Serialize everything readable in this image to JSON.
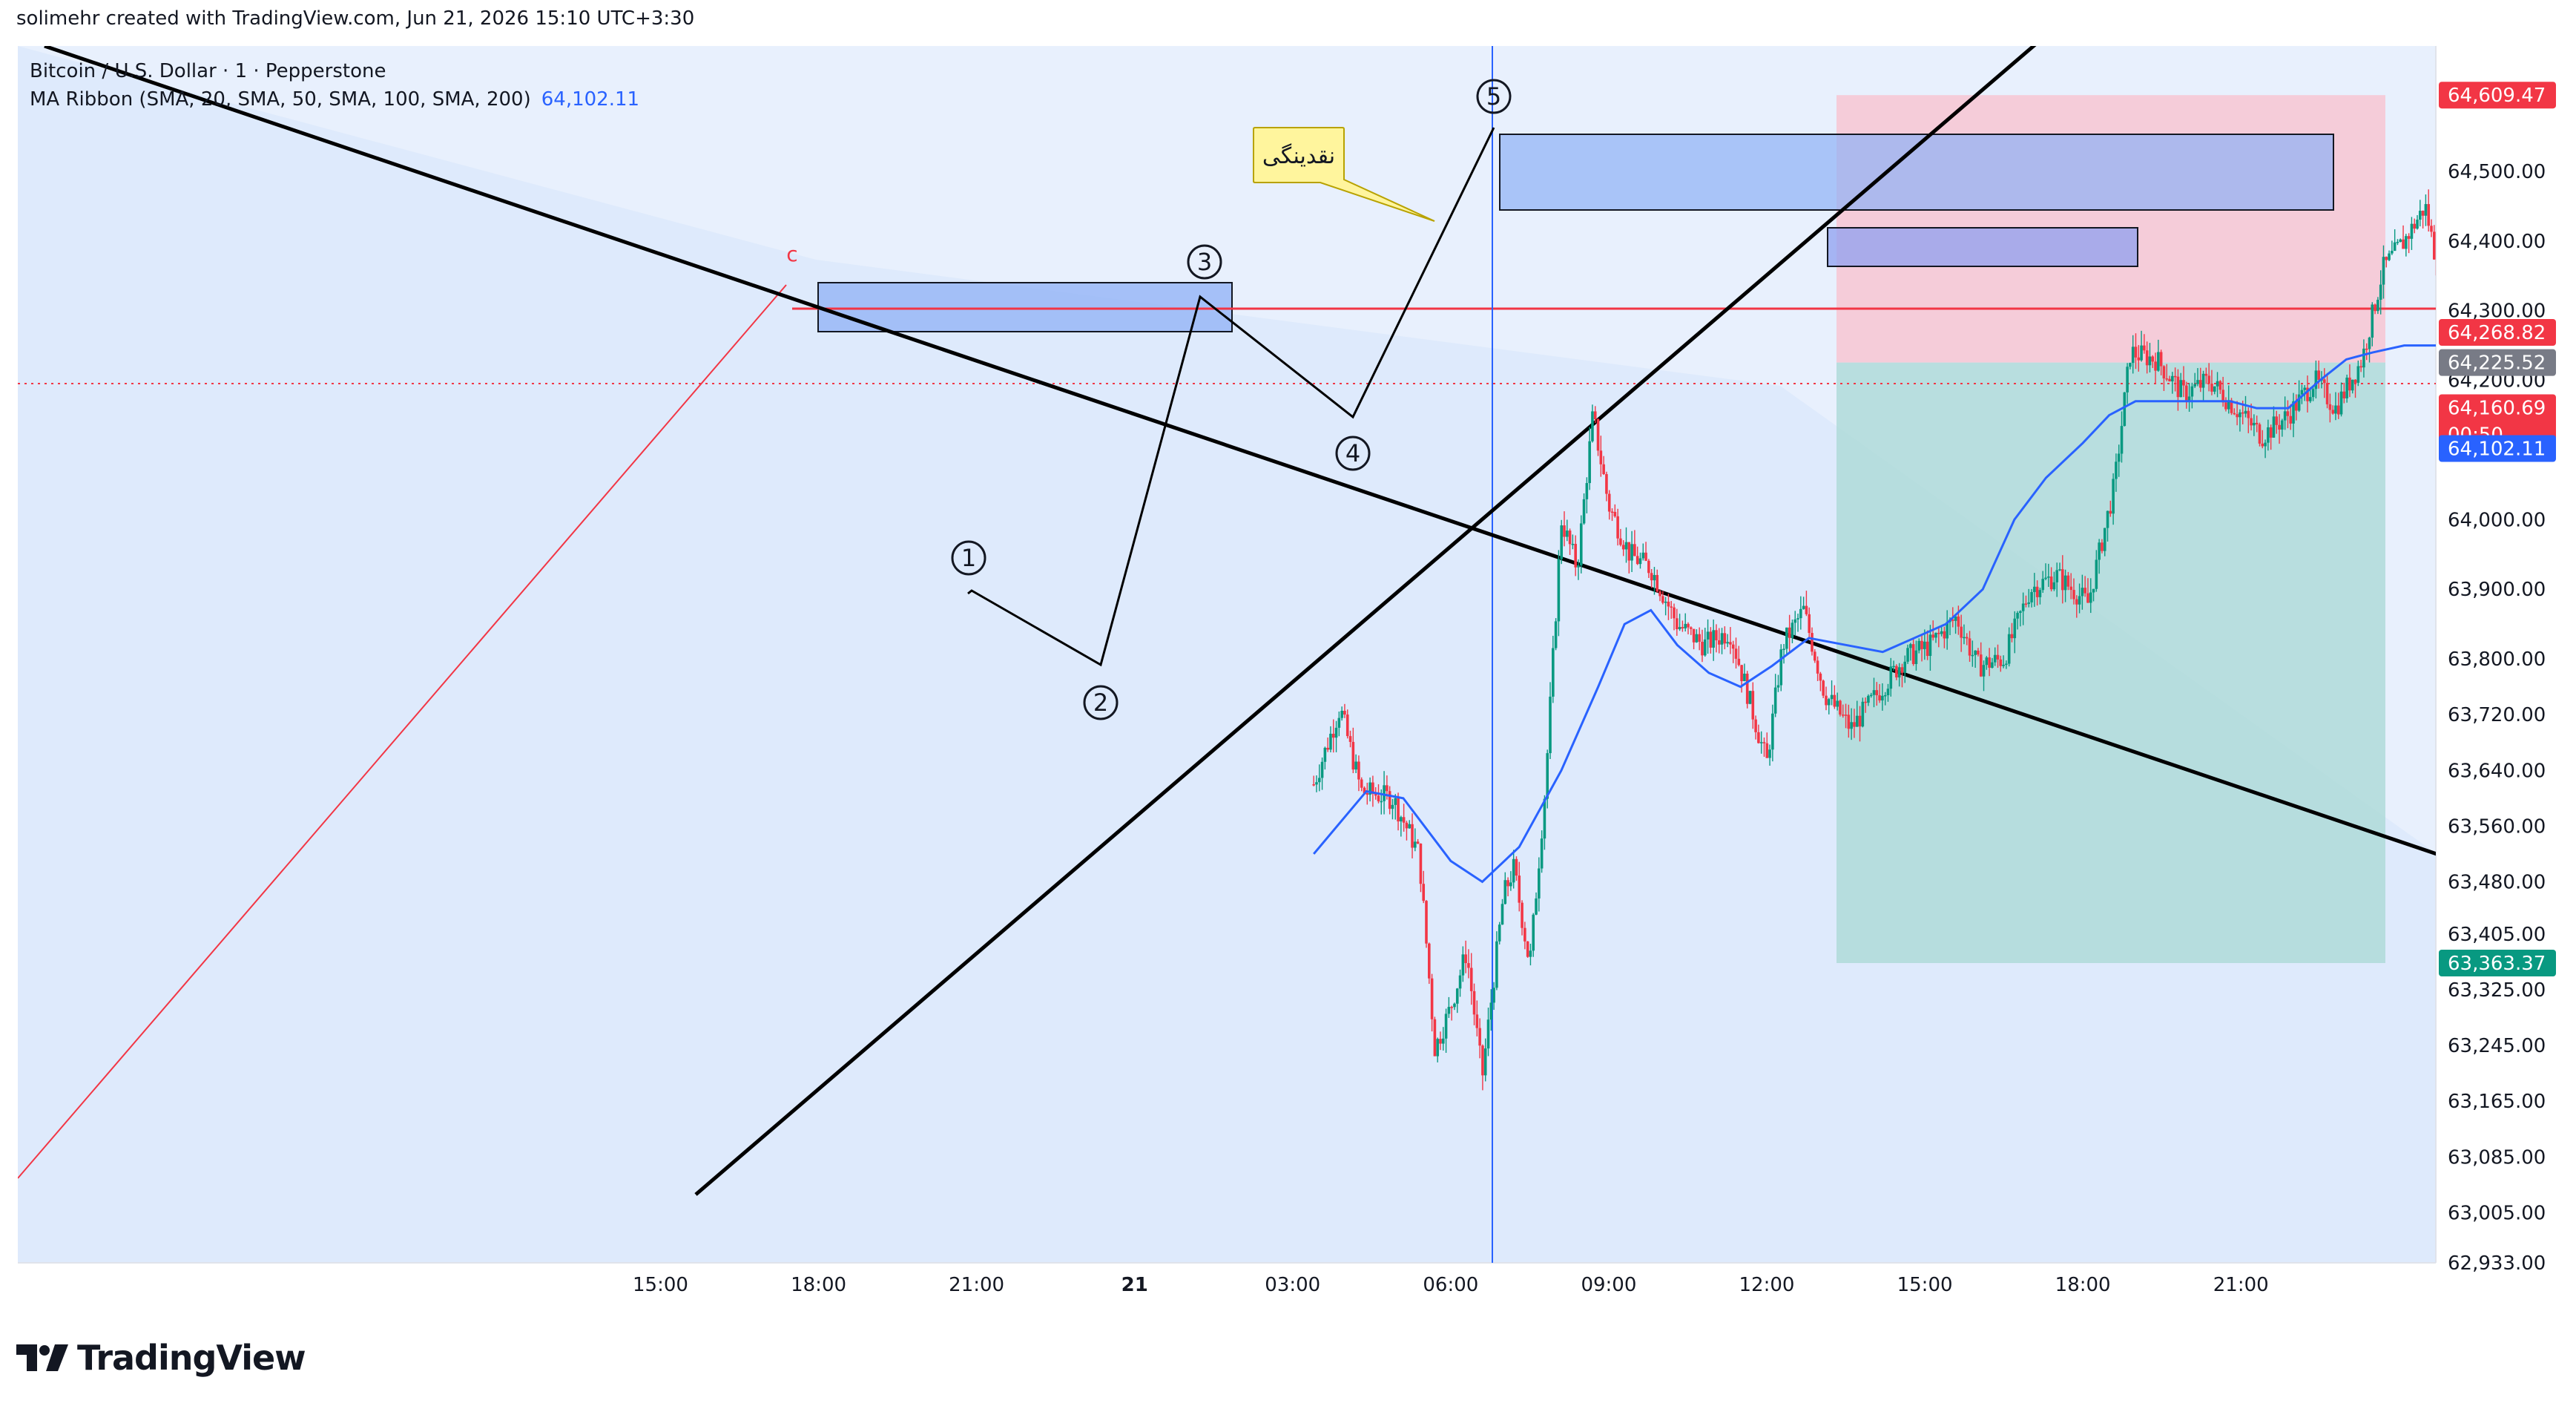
{
  "header": {
    "credit": "solimehr created with TradingView.com, Jun 21, 2026 15:10 UTC+3:30"
  },
  "legend": {
    "symbol": "Bitcoin / U.S. Dollar · 1 · Pepperstone",
    "indicator": "MA Ribbon (SMA, 20, SMA, 50, SMA, 100, SMA, 200)",
    "indicator_value": "64,102.11"
  },
  "footer": {
    "brand": "TradingView"
  },
  "colors": {
    "background": "#ffffff",
    "plot_bg": "#e8f0fd",
    "up_candle": "#089981",
    "down_candle": "#f23645",
    "sma": "#2962ff",
    "stop_zone": "#f7c6d2",
    "target_zone": "#a8d8d4",
    "order_block": "#8fb0f5",
    "resistance": "#f23645",
    "trendline": "#000000"
  },
  "chart_data": {
    "type": "candlestick",
    "symbol": "Bitcoin / U.S. Dollar",
    "interval": "1",
    "ylim": [
      62933,
      64680
    ],
    "y_ticks": [
      "64,500.00",
      "64,400.00",
      "64,300.00",
      "64,200.00",
      "64,000.00",
      "63,900.00",
      "63,800.00",
      "63,720.00",
      "63,640.00",
      "63,560.00",
      "63,480.00",
      "63,405.00",
      "63,325.00",
      "63,245.00",
      "63,165.00",
      "63,085.00",
      "63,005.00",
      "62,933.00"
    ],
    "x_ticks": [
      "15:00",
      "18:00",
      "21:00",
      "21",
      "03:00",
      "06:00",
      "09:00",
      "12:00",
      "15:00",
      "18:00",
      "21:00"
    ],
    "x_ticks_hours": [
      15,
      18,
      21,
      24,
      27,
      30,
      33,
      36,
      39,
      42,
      45
    ],
    "x_range_hours": [
      2.8,
      48.7
    ],
    "price_path": [
      [
        27.4,
        63620
      ],
      [
        27.9,
        63730
      ],
      [
        28.3,
        63610
      ],
      [
        28.9,
        63600
      ],
      [
        29.4,
        63520
      ],
      [
        29.7,
        63240
      ],
      [
        30.0,
        63300
      ],
      [
        30.3,
        63380
      ],
      [
        30.6,
        63200
      ],
      [
        31.0,
        63460
      ],
      [
        31.2,
        63500
      ],
      [
        31.5,
        63360
      ],
      [
        31.8,
        63620
      ],
      [
        32.1,
        64000
      ],
      [
        32.4,
        63930
      ],
      [
        32.7,
        64150
      ],
      [
        33.0,
        64020
      ],
      [
        33.4,
        63950
      ],
      [
        33.8,
        63930
      ],
      [
        34.3,
        63850
      ],
      [
        34.8,
        63820
      ],
      [
        35.3,
        63840
      ],
      [
        35.6,
        63760
      ],
      [
        36.0,
        63650
      ],
      [
        36.3,
        63820
      ],
      [
        36.7,
        63870
      ],
      [
        37.1,
        63750
      ],
      [
        37.6,
        63700
      ],
      [
        38.2,
        63760
      ],
      [
        38.6,
        63800
      ],
      [
        39.1,
        63820
      ],
      [
        39.6,
        63860
      ],
      [
        40.0,
        63790
      ],
      [
        40.5,
        63800
      ],
      [
        41.0,
        63900
      ],
      [
        41.5,
        63920
      ],
      [
        42.1,
        63880
      ],
      [
        42.6,
        64050
      ],
      [
        42.9,
        64240
      ],
      [
        43.4,
        64230
      ],
      [
        43.9,
        64180
      ],
      [
        44.4,
        64200
      ],
      [
        44.9,
        64160
      ],
      [
        45.4,
        64120
      ],
      [
        45.9,
        64150
      ],
      [
        46.4,
        64200
      ],
      [
        46.8,
        64160
      ],
      [
        47.3,
        64230
      ],
      [
        47.7,
        64360
      ],
      [
        48.1,
        64400
      ],
      [
        48.5,
        64450
      ],
      [
        48.9,
        64300
      ],
      [
        49.3,
        64240
      ],
      [
        49.8,
        64200
      ],
      [
        50.3,
        64220
      ],
      [
        50.8,
        64180
      ],
      [
        51.2,
        64250
      ],
      [
        51.7,
        64200
      ],
      [
        52.1,
        64130
      ],
      [
        52.6,
        64200
      ],
      [
        53.0,
        64150
      ],
      [
        53.4,
        64020
      ],
      [
        53.8,
        63900
      ],
      [
        54.2,
        63820
      ],
      [
        54.6,
        63850
      ],
      [
        55.0,
        63900
      ],
      [
        55.3,
        64000
      ],
      [
        55.7,
        64080
      ],
      [
        56.1,
        64130
      ],
      [
        56.5,
        64230
      ],
      [
        56.8,
        64320
      ],
      [
        57.2,
        64260
      ],
      [
        57.6,
        64110
      ],
      [
        57.9,
        64160
      ]
    ],
    "sma_path": [
      [
        27.4,
        63520
      ],
      [
        28.4,
        63610
      ],
      [
        29.1,
        63600
      ],
      [
        30.0,
        63510
      ],
      [
        30.6,
        63480
      ],
      [
        31.3,
        63530
      ],
      [
        32.1,
        63640
      ],
      [
        32.8,
        63760
      ],
      [
        33.3,
        63850
      ],
      [
        33.8,
        63870
      ],
      [
        34.3,
        63820
      ],
      [
        34.9,
        63780
      ],
      [
        35.5,
        63760
      ],
      [
        36.1,
        63790
      ],
      [
        36.8,
        63830
      ],
      [
        37.5,
        63820
      ],
      [
        38.2,
        63810
      ],
      [
        38.8,
        63830
      ],
      [
        39.4,
        63850
      ],
      [
        40.1,
        63900
      ],
      [
        40.7,
        64000
      ],
      [
        41.3,
        64060
      ],
      [
        42.0,
        64110
      ],
      [
        42.5,
        64150
      ],
      [
        43.0,
        64170
      ],
      [
        43.6,
        64170
      ],
      [
        44.2,
        64170
      ],
      [
        44.8,
        64170
      ],
      [
        45.3,
        64160
      ],
      [
        45.9,
        64160
      ],
      [
        46.5,
        64200
      ],
      [
        47.0,
        64230
      ],
      [
        47.5,
        64240
      ],
      [
        48.1,
        64250
      ],
      [
        48.7,
        64250
      ],
      [
        49.3,
        64230
      ],
      [
        49.9,
        64220
      ],
      [
        50.5,
        64200
      ],
      [
        51.1,
        64180
      ],
      [
        51.8,
        64120
      ],
      [
        52.4,
        64080
      ],
      [
        53.0,
        64060
      ],
      [
        53.6,
        64060
      ],
      [
        54.2,
        64080
      ],
      [
        54.8,
        64100
      ]
    ],
    "series": [
      {
        "name": "MA Ribbon (SMA, 20, SMA, 50, SMA, 100, SMA, 200)",
        "last": "64,102.11"
      }
    ],
    "wave_labels": [
      {
        "label": "1",
        "t": 36.4,
        "price": 63890
      },
      {
        "label": "2",
        "t": 38.9,
        "price": 63710
      },
      {
        "label": "3",
        "t": 42.0,
        "price": 64300
      },
      {
        "label": "4",
        "t": 45.1,
        "price": 64080
      },
      {
        "label": "5",
        "t": 47.5,
        "price": 64560
      },
      {
        "label": "c",
        "t": 32.0,
        "price": 64320
      }
    ],
    "annotations": [
      {
        "text": "نقدینگی"
      }
    ],
    "price_labels": [
      {
        "value": "64,609.47",
        "color": "#f23645"
      },
      {
        "value": "64,268.82",
        "color": "#f23645"
      },
      {
        "value": "64,225.52",
        "color": "#787b86"
      },
      {
        "value": "64,160.69",
        "sub": "00:50",
        "color": "#f23645"
      },
      {
        "value": "64,102.11",
        "color": "#2962ff"
      },
      {
        "value": "63,363.37",
        "color": "#089981"
      }
    ],
    "position": {
      "type": "short",
      "entry": 64225.52,
      "stop": 64609.47,
      "target": 63363.37
    },
    "resistance_level": 64268.82,
    "last_price": 64160.69,
    "grid": false,
    "legend_position": "top-left"
  }
}
